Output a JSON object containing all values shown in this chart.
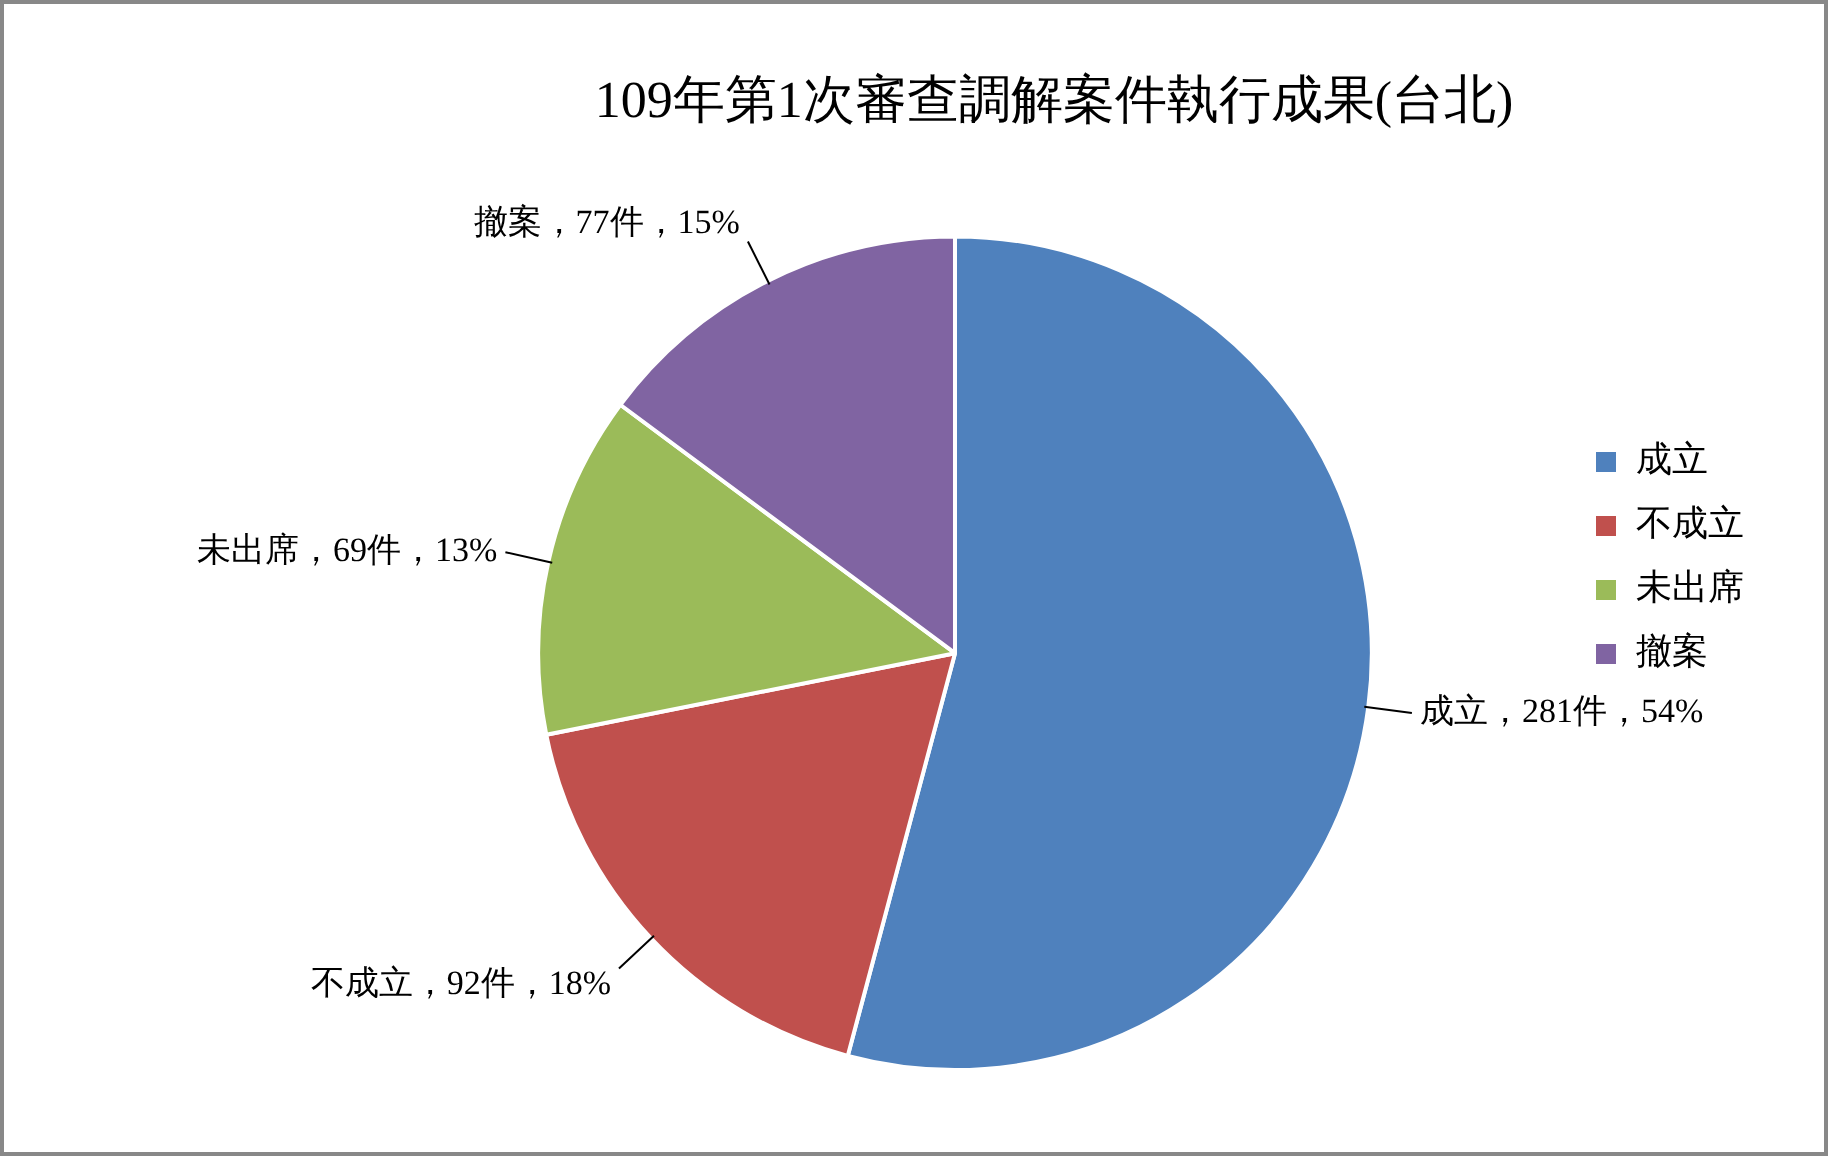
{
  "chart_data": {
    "type": "pie",
    "title": "109年第1次審查調解案件執行成果(台北)",
    "categories": [
      "成立",
      "不成立",
      "未出席",
      "撤案"
    ],
    "values": [
      281,
      92,
      69,
      77
    ],
    "colors": [
      "#4f81bd",
      "#c0504d",
      "#9bbb59",
      "#8064a2"
    ],
    "value_labels": [
      "成立，281件，54%",
      "不成立，92件，18%",
      "未出席，69件，13%",
      "撤案，77件，15%"
    ],
    "legend": "right"
  }
}
